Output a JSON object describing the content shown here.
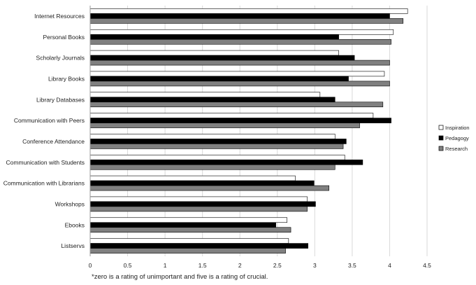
{
  "chart_data": {
    "type": "bar",
    "orientation": "horizontal",
    "categories": [
      "Internet Resources",
      "Personal Books",
      "Scholarly Journals",
      "Library Books",
      "Library Databases",
      "Communication with Peers",
      "Conference Attendance",
      "Communication with Students",
      "Communication with Librarians",
      "Workshops",
      "Ebooks",
      "Listservs"
    ],
    "series": [
      {
        "name": "Inspiration",
        "color": "#ffffff",
        "values": [
          4.24,
          4.05,
          3.32,
          3.93,
          3.07,
          3.78,
          3.27,
          3.4,
          2.74,
          2.9,
          2.63,
          2.65
        ]
      },
      {
        "name": "Pedagogy",
        "color": "#000000",
        "values": [
          4.0,
          3.32,
          3.53,
          3.45,
          3.27,
          4.02,
          3.42,
          3.64,
          2.99,
          3.01,
          2.48,
          2.91
        ]
      },
      {
        "name": "Research",
        "color": "#808080",
        "values": [
          4.18,
          4.02,
          4.0,
          4.0,
          3.91,
          3.6,
          3.38,
          3.27,
          3.19,
          2.9,
          2.68,
          2.61
        ]
      }
    ],
    "xlim": [
      0,
      4.5
    ],
    "xticks": [
      "0",
      "0.5",
      "1",
      "1.5",
      "2",
      "2.5",
      "3",
      "3.5",
      "4",
      "4.5"
    ],
    "grid": "vertical",
    "legend_position": "right",
    "footnote": "*zero is a rating of unimportant and five is a rating of crucial."
  }
}
